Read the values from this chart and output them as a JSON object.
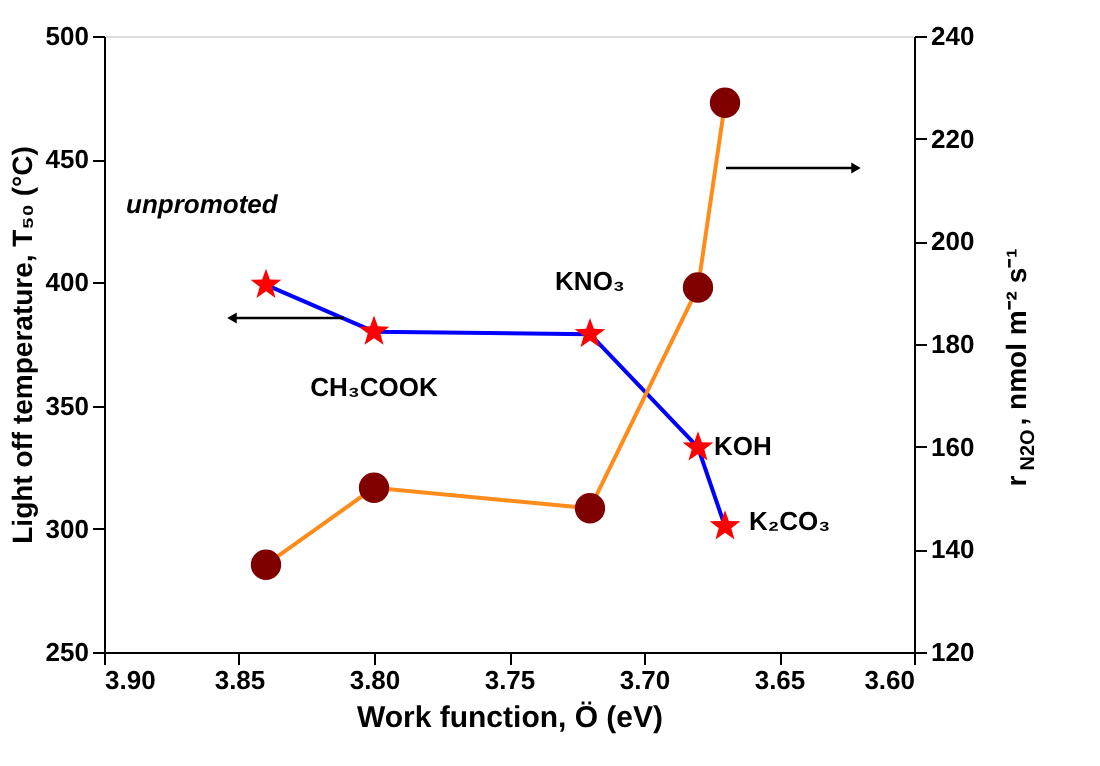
{
  "chart_data": {
    "type": "line",
    "xlabel": "Work function, Ö (eV)",
    "ylabel": "Light off temperature, T₅₀ (°C)",
    "y2label": "r$_{N2O}$, nmol m⁻² s⁻¹",
    "x": [
      3.84,
      3.8,
      3.72,
      3.68,
      3.67
    ],
    "series": [
      {
        "color": "#0000ff",
        "colors": [
          "#ff0000",
          "#ff0000",
          "#ff0000",
          "#ff0000",
          "#ff0000"
        ],
        "marker": "star",
        "values": [
          399,
          380,
          379,
          333,
          301
        ]
      },
      {
        "color": "#ff8c1a",
        "colors": [
          "#800000",
          "#800000",
          "#800000",
          "#800000",
          "#800000"
        ],
        "marker": "circle",
        "axis": "y2",
        "values": [
          137,
          152,
          148,
          191,
          227
        ]
      }
    ],
    "xlim": [
      3.9,
      3.6
    ],
    "xticks": [
      {
        "value": 3.9,
        "label": "3.90"
      },
      3.85,
      {
        "value": 3.8,
        "label": "3.80"
      },
      3.75,
      {
        "value": 3.7,
        "label": "3.70"
      },
      3.65,
      {
        "value": 3.6,
        "label": "3.60"
      }
    ],
    "ylim": [
      250,
      500
    ],
    "yticks": [
      250,
      300,
      350,
      400,
      450,
      500
    ],
    "y2lim": [
      120,
      240
    ],
    "y2ticks": [
      120,
      140,
      160,
      180,
      200,
      220,
      240
    ],
    "annotations": [
      {
        "text": "unpromoted",
        "x": 3.84,
        "y": 399
      },
      {
        "text": "CH₃COOK",
        "x": 3.8,
        "y": 380
      },
      {
        "text": "KNO₃",
        "x": 3.72,
        "y": 379
      },
      {
        "text": "KOH",
        "x": 3.68,
        "y": 333
      },
      {
        "text": "K₂CO₃",
        "x": 3.67,
        "y": 301
      }
    ],
    "grid": false,
    "legend": false
  }
}
